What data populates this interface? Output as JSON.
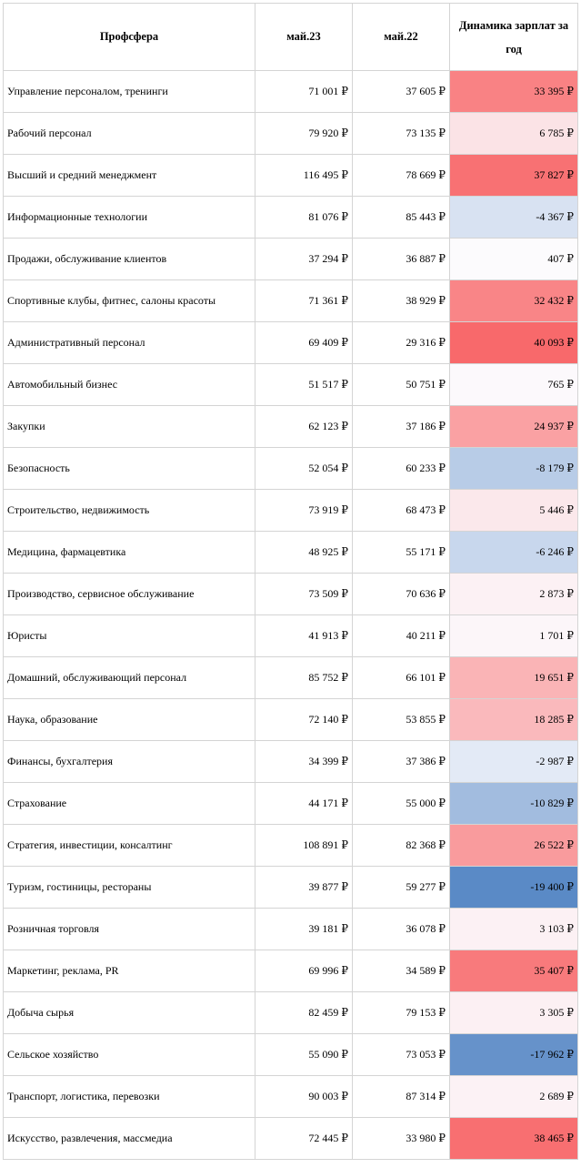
{
  "header": {
    "col_sphere": "Профсфера",
    "col_may23": "май.23",
    "col_may22": "май.22",
    "col_dynamics": "Динамика зарплат за год"
  },
  "rows": [
    {
      "sphere": "Управление персоналом, тренинги",
      "may23": "71 001 ₽",
      "may22": "37 605 ₽",
      "change": "33 395 ₽",
      "delta": 33395
    },
    {
      "sphere": "Рабочий персонал",
      "may23": "79 920 ₽",
      "may22": "73 135 ₽",
      "change": "6 785 ₽",
      "delta": 6785
    },
    {
      "sphere": "Высший и средний менеджмент",
      "may23": "116 495 ₽",
      "may22": "78 669 ₽",
      "change": "37 827 ₽",
      "delta": 37827
    },
    {
      "sphere": "Информационные технологии",
      "may23": "81 076 ₽",
      "may22": "85 443 ₽",
      "change": "-4 367 ₽",
      "delta": -4367
    },
    {
      "sphere": "Продажи, обслуживание клиентов",
      "may23": "37 294 ₽",
      "may22": "36 887 ₽",
      "change": "407 ₽",
      "delta": 407
    },
    {
      "sphere": "Спортивные клубы, фитнес, салоны красоты",
      "may23": "71 361 ₽",
      "may22": "38 929 ₽",
      "change": "32 432 ₽",
      "delta": 32432
    },
    {
      "sphere": "Административный персонал",
      "may23": "69 409 ₽",
      "may22": "29 316 ₽",
      "change": "40 093 ₽",
      "delta": 40093
    },
    {
      "sphere": "Автомобильный бизнес",
      "may23": "51 517 ₽",
      "may22": "50 751 ₽",
      "change": "765 ₽",
      "delta": 765
    },
    {
      "sphere": "Закупки",
      "may23": "62 123 ₽",
      "may22": "37 186 ₽",
      "change": "24 937 ₽",
      "delta": 24937
    },
    {
      "sphere": "Безопасность",
      "may23": "52 054 ₽",
      "may22": "60 233 ₽",
      "change": "-8 179 ₽",
      "delta": -8179
    },
    {
      "sphere": "Строительство, недвижимость",
      "may23": "73 919 ₽",
      "may22": "68 473 ₽",
      "change": "5 446 ₽",
      "delta": 5446
    },
    {
      "sphere": "Медицина, фармацевтика",
      "may23": "48 925 ₽",
      "may22": "55 171 ₽",
      "change": "-6 246 ₽",
      "delta": -6246
    },
    {
      "sphere": "Производство, сервисное обслуживание",
      "may23": "73 509 ₽",
      "may22": "70 636 ₽",
      "change": "2 873 ₽",
      "delta": 2873
    },
    {
      "sphere": "Юристы",
      "may23": "41 913 ₽",
      "may22": "40 211 ₽",
      "change": "1 701 ₽",
      "delta": 1701
    },
    {
      "sphere": "Домашний, обслуживающий персонал",
      "may23": "85 752 ₽",
      "may22": "66 101 ₽",
      "change": "19 651 ₽",
      "delta": 19651
    },
    {
      "sphere": "Наука, образование",
      "may23": "72 140 ₽",
      "may22": "53 855 ₽",
      "change": "18 285 ₽",
      "delta": 18285
    },
    {
      "sphere": "Финансы, бухгалтерия",
      "may23": "34 399 ₽",
      "may22": "37 386 ₽",
      "change": "-2 987 ₽",
      "delta": -2987
    },
    {
      "sphere": "Страхование",
      "may23": "44 171 ₽",
      "may22": "55 000 ₽",
      "change": "-10 829 ₽",
      "delta": -10829
    },
    {
      "sphere": "Стратегия, инвестиции, консалтинг",
      "may23": "108 891 ₽",
      "may22": "82 368 ₽",
      "change": "26 522 ₽",
      "delta": 26522
    },
    {
      "sphere": "Туризм, гостиницы, рестораны",
      "may23": "39 877 ₽",
      "may22": "59 277 ₽",
      "change": "-19 400 ₽",
      "delta": -19400
    },
    {
      "sphere": "Розничная торговля",
      "may23": "39 181 ₽",
      "may22": "36 078 ₽",
      "change": "3 103 ₽",
      "delta": 3103
    },
    {
      "sphere": "Маркетинг, реклама, PR",
      "may23": "69 996 ₽",
      "may22": "34 589 ₽",
      "change": "35 407 ₽",
      "delta": 35407
    },
    {
      "sphere": "Добыча сырья",
      "may23": "82 459 ₽",
      "may22": "79 153 ₽",
      "change": "3 305 ₽",
      "delta": 3305
    },
    {
      "sphere": "Сельское хозяйство",
      "may23": "55 090 ₽",
      "may22": "73 053 ₽",
      "change": "-17 962 ₽",
      "delta": -17962
    },
    {
      "sphere": "Транспорт, логистика, перевозки",
      "may23": "90 003 ₽",
      "may22": "87 314 ₽",
      "change": "2 689 ₽",
      "delta": 2689
    },
    {
      "sphere": "Искусство, развлечения, массмедиа",
      "may23": "72 445 ₽",
      "may22": "33 980 ₽",
      "change": "38 465 ₽",
      "delta": 38465
    }
  ],
  "colors": {
    "positive_max": "#f8696b",
    "neutral": "#fcfcff",
    "negative_max": "#5a8ac6",
    "border": "#d4d4d4"
  }
}
